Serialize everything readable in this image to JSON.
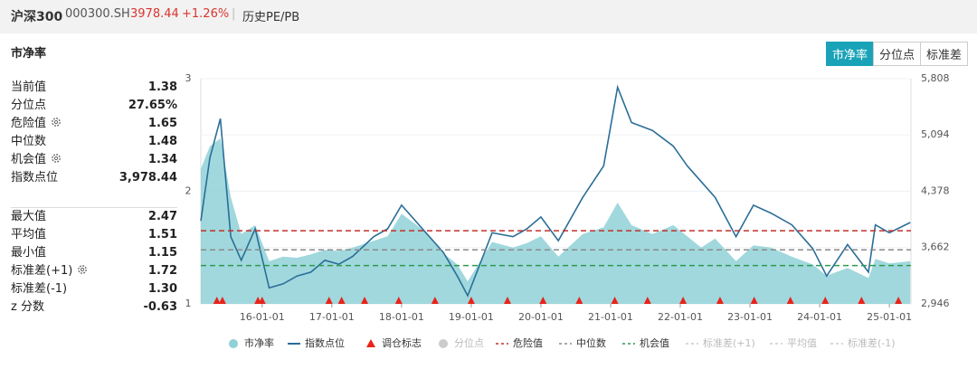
{
  "header": {
    "name": "沪深300",
    "code": "000300.SH",
    "price": "3978.44",
    "change": "+1.26%",
    "link": "历史PE/PB"
  },
  "panel_title": "市净率",
  "tabs": [
    "市净率",
    "分位点",
    "标准差"
  ],
  "stats": [
    {
      "label": "当前值",
      "value": "1.38"
    },
    {
      "label": "分位点",
      "value": "27.65%"
    },
    {
      "label": "危险值",
      "value": "1.65",
      "gear": true
    },
    {
      "label": "中位数",
      "value": "1.48"
    },
    {
      "label": "机会值",
      "value": "1.34",
      "gear": true
    },
    {
      "label": "指数点位",
      "value": "3,978.44"
    },
    {
      "label": "最大值",
      "value": "2.47"
    },
    {
      "label": "平均值",
      "value": "1.51"
    },
    {
      "label": "最小值",
      "value": "1.15"
    },
    {
      "label": "标准差(+1)",
      "value": "1.72",
      "gear": true
    },
    {
      "label": "标准差(-1)",
      "value": "1.30"
    },
    {
      "label": "z 分数",
      "value": "-0.63"
    }
  ],
  "chart_data": {
    "type": "line",
    "x": [
      2015.12,
      2015.25,
      2015.4,
      2015.55,
      2015.7,
      2015.9,
      2016.1,
      2016.3,
      2016.5,
      2016.7,
      2016.9,
      2017.1,
      2017.3,
      2017.6,
      2017.8,
      2018.0,
      2018.3,
      2018.6,
      2018.8,
      2018.95,
      2019.3,
      2019.6,
      2019.8,
      2020.0,
      2020.25,
      2020.6,
      2020.9,
      2021.1,
      2021.3,
      2021.6,
      2021.9,
      2022.1,
      2022.3,
      2022.5,
      2022.8,
      2023.05,
      2023.3,
      2023.6,
      2023.9,
      2024.1,
      2024.4,
      2024.7,
      2024.8,
      2025.0,
      2025.3
    ],
    "xlim": [
      2015.12,
      2025.31
    ],
    "xticks": [
      {
        "value": 2016,
        "label": "16-01-01"
      },
      {
        "value": 2017,
        "label": "17-01-01"
      },
      {
        "value": 2018,
        "label": "18-01-01"
      },
      {
        "value": 2019,
        "label": "19-01-01"
      },
      {
        "value": 2020,
        "label": "20-01-01"
      },
      {
        "value": 2021,
        "label": "21-01-01"
      },
      {
        "value": 2022,
        "label": "22-01-01"
      },
      {
        "value": 2023,
        "label": "23-01-01"
      },
      {
        "value": 2024,
        "label": "24-01-01"
      },
      {
        "value": 2025,
        "label": "25-01-01"
      }
    ],
    "ylim": [
      1,
      3
    ],
    "yticks": [
      1,
      2,
      3
    ],
    "y2lim": [
      2946,
      5808
    ],
    "y2ticks": [
      {
        "value": 2946,
        "label": "2,946"
      },
      {
        "value": 3662,
        "label": "3,662"
      },
      {
        "value": 4378,
        "label": "4,378"
      },
      {
        "value": 5094,
        "label": "5,094"
      },
      {
        "value": 5808,
        "label": "5,808"
      }
    ],
    "series": [
      {
        "name": "市净率",
        "color": "#8fd1d7",
        "style": "area",
        "values": [
          2.2,
          2.4,
          2.47,
          1.95,
          1.62,
          1.7,
          1.38,
          1.42,
          1.41,
          1.44,
          1.48,
          1.47,
          1.5,
          1.56,
          1.6,
          1.8,
          1.66,
          1.45,
          1.35,
          1.2,
          1.55,
          1.5,
          1.54,
          1.6,
          1.42,
          1.62,
          1.68,
          1.9,
          1.7,
          1.62,
          1.7,
          1.6,
          1.5,
          1.58,
          1.38,
          1.52,
          1.5,
          1.42,
          1.35,
          1.25,
          1.32,
          1.23,
          1.4,
          1.36,
          1.38
        ]
      },
      {
        "name": "指数点位",
        "color": "#2a6e98",
        "style": "line",
        "axis": "y2",
        "values": [
          4000,
          4800,
          5300,
          3800,
          3500,
          3900,
          3150,
          3200,
          3300,
          3350,
          3500,
          3450,
          3550,
          3800,
          3900,
          4200,
          3900,
          3600,
          3300,
          3050,
          3850,
          3800,
          3900,
          4050,
          3750,
          4300,
          4700,
          5700,
          5250,
          5150,
          4950,
          4700,
          4500,
          4300,
          3800,
          4200,
          4100,
          3950,
          3650,
          3300,
          3700,
          3350,
          3950,
          3850,
          3980
        ]
      }
    ],
    "markers": {
      "name": "调仓标志",
      "color": "#e8231a",
      "x": [
        2015.35,
        2015.43,
        2015.94,
        2016.0,
        2016.96,
        2017.14,
        2017.47,
        2017.96,
        2018.48,
        2019.0,
        2019.52,
        2020.03,
        2020.55,
        2021.06,
        2021.53,
        2022.04,
        2022.57,
        2023.06,
        2023.58,
        2024.08,
        2024.6,
        2025.13
      ]
    },
    "reference_lines": [
      {
        "name": "危险值",
        "value": 1.65,
        "color": "#c0302b"
      },
      {
        "name": "中位数",
        "value": 1.48,
        "color": "#8a8a8a"
      },
      {
        "name": "机会值",
        "value": 1.34,
        "color": "#2e9a4f"
      }
    ],
    "inactive_legend": [
      {
        "name": "分位点",
        "color": "#cccccc",
        "symbol": "circle"
      },
      {
        "name": "标准差(+1)",
        "color": "#cccccc",
        "symbol": "dash"
      },
      {
        "name": "平均值",
        "color": "#cccccc",
        "symbol": "dash"
      },
      {
        "name": "标准差(-1)",
        "color": "#cccccc",
        "symbol": "dash"
      }
    ]
  }
}
